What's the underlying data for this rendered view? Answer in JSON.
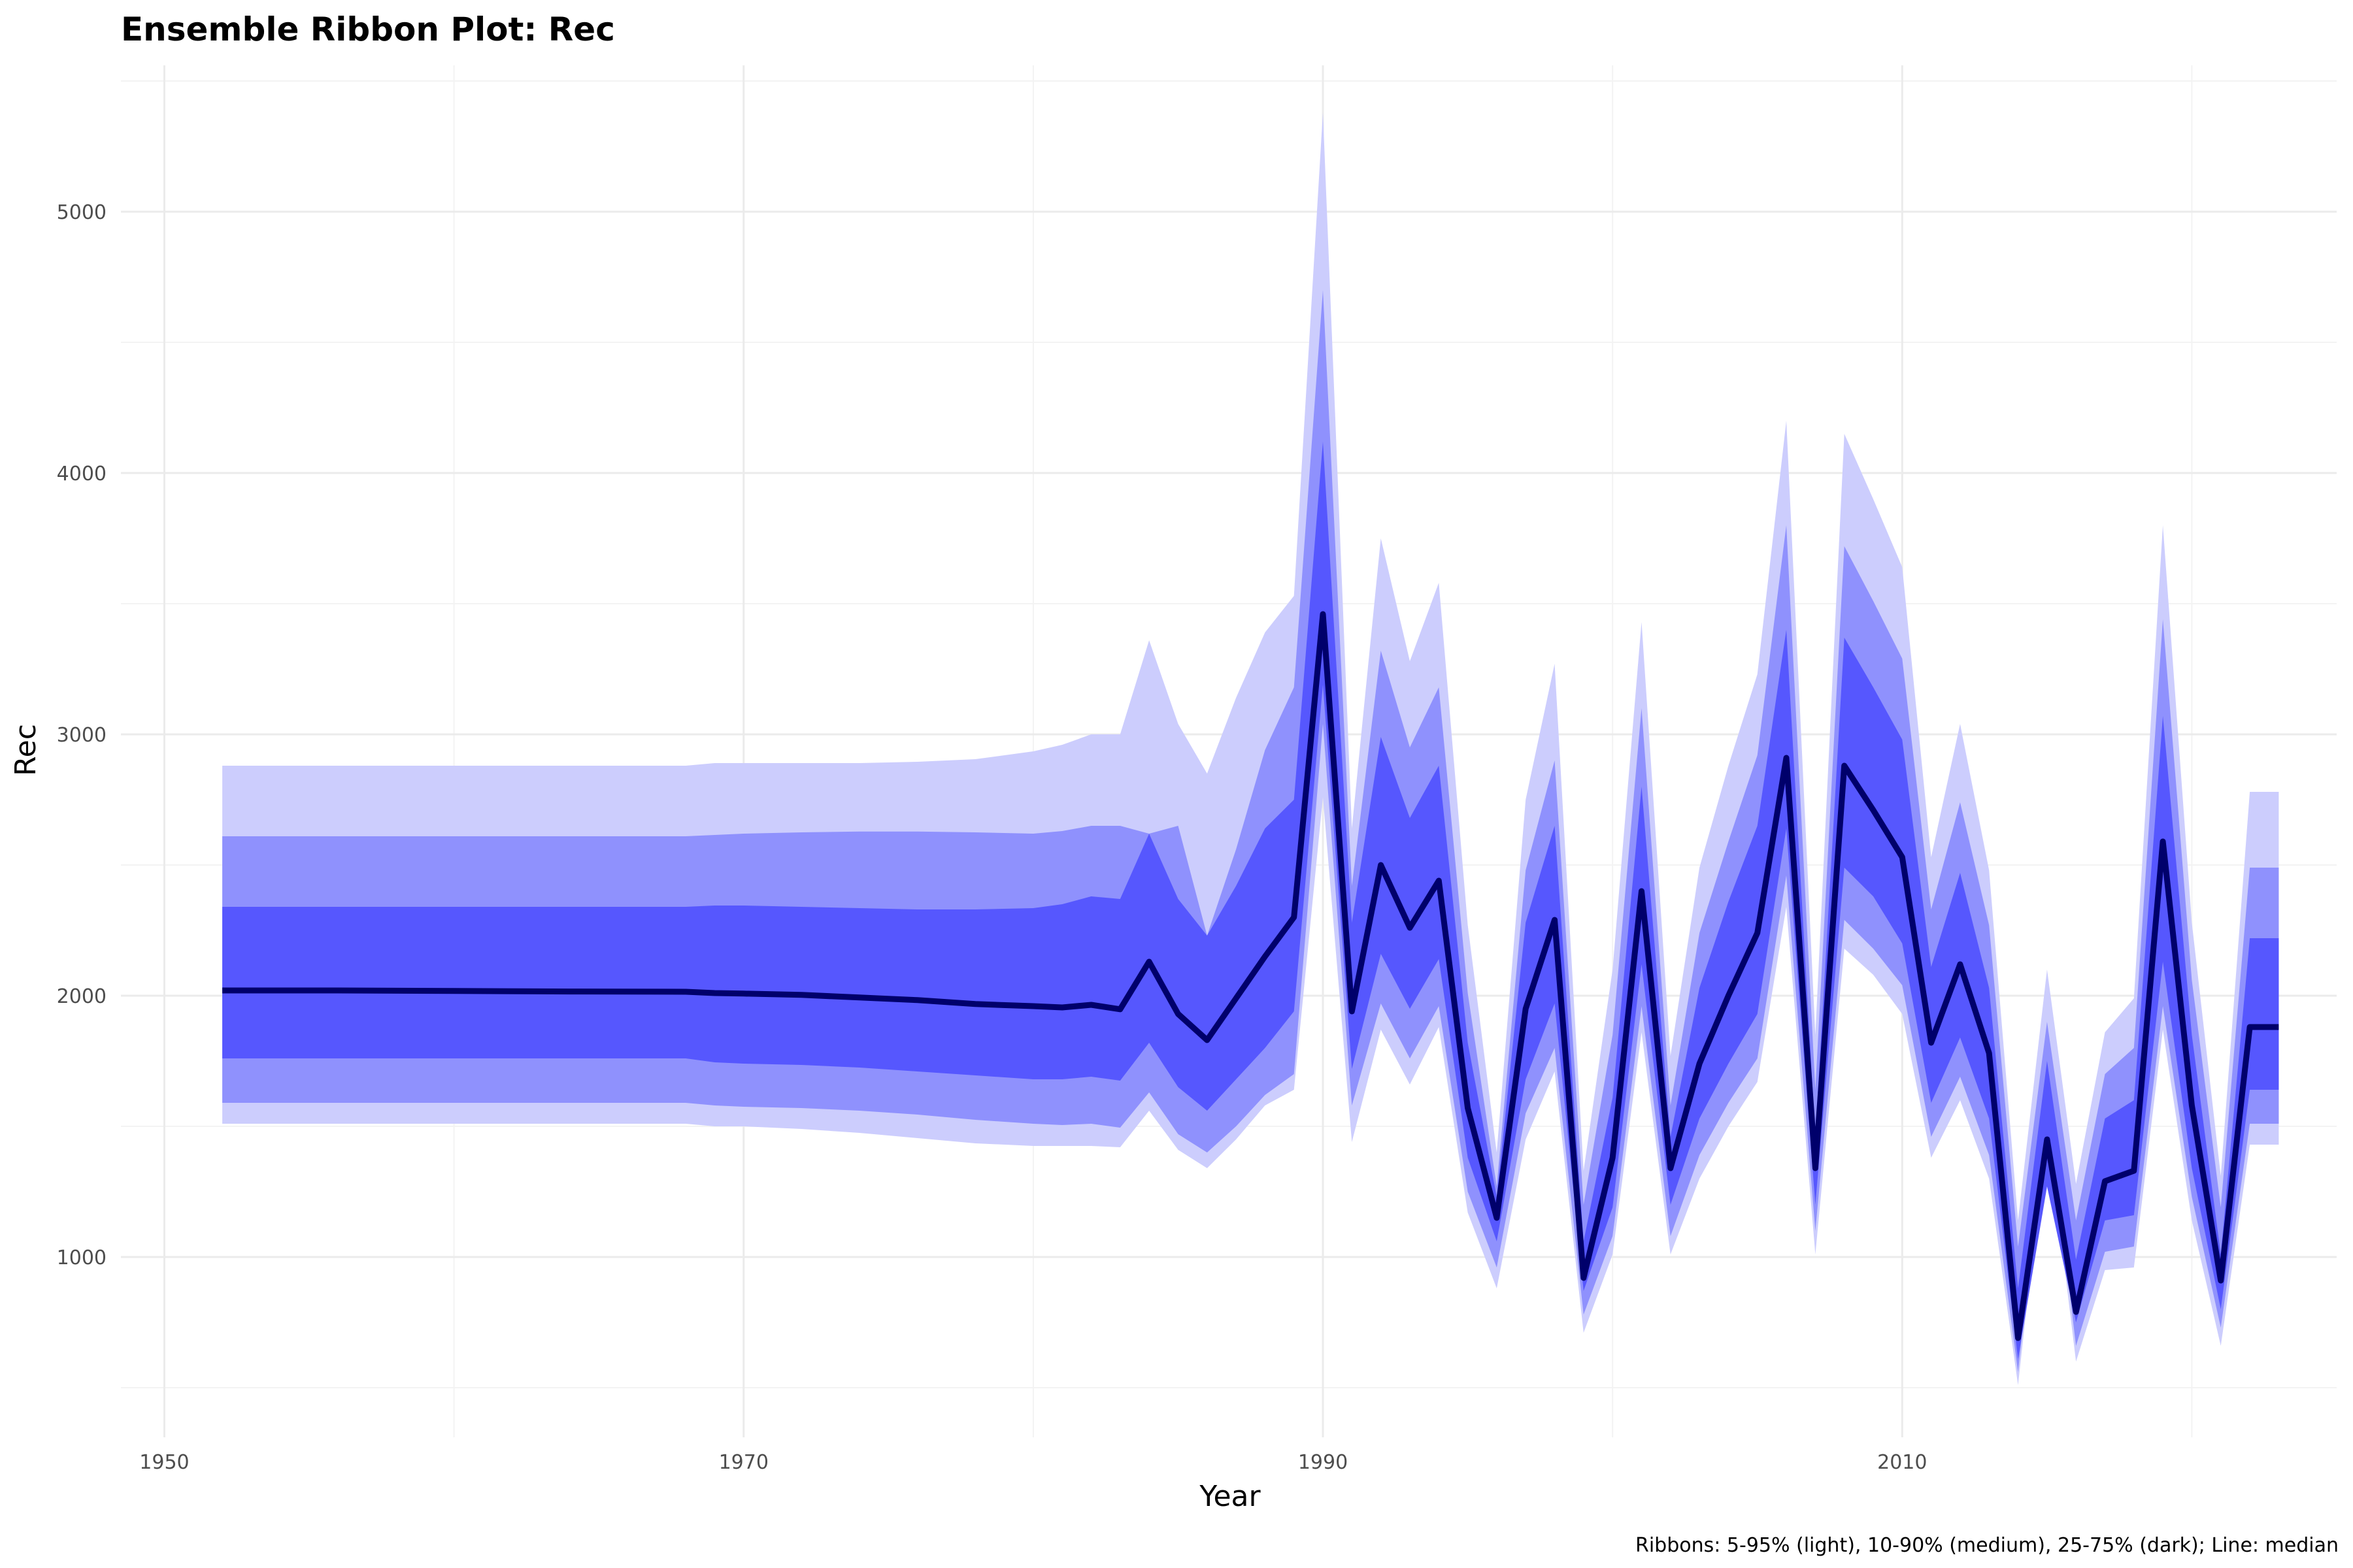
{
  "chart_data": {
    "type": "area",
    "title": "Ensemble Ribbon Plot: Rec",
    "xlabel": "Year",
    "ylabel": "Rec",
    "caption": "Ribbons: 5-95% (light), 10-90% (medium), 25-75% (dark); Line: median",
    "xlim": [
      1948.5,
      2025
    ],
    "ylim": [
      310,
      5560
    ],
    "x_ticks": [
      1950,
      1970,
      1990,
      2010
    ],
    "y_ticks": [
      1000,
      2000,
      3000,
      4000,
      5000
    ],
    "grid": true,
    "colors": {
      "ribbon_5_95": "#cccdfd",
      "ribbon_10_90": "#8f91fd",
      "ribbon_25_75": "#5657fe",
      "median_line": "#00006b"
    },
    "x": [
      1952,
      1956,
      1960,
      1964,
      1968,
      1969,
      1970,
      1972,
      1974,
      1976,
      1978,
      1980,
      1981,
      1982,
      1983,
      1984,
      1985,
      1986,
      1987,
      1988,
      1989,
      1990,
      1991,
      1992,
      1993,
      1994,
      1995,
      1996,
      1997,
      1998,
      1999,
      2000,
      2001,
      2002,
      2003,
      2004,
      2005,
      2006,
      2007,
      2008,
      2009,
      2010,
      2011,
      2012,
      2013,
      2014,
      2015,
      2016,
      2017,
      2018,
      2019,
      2020,
      2021,
      2022,
      2023
    ],
    "series": [
      {
        "name": "5-95% (light)",
        "low": [
          1510,
          1510,
          1510,
          1510,
          1510,
          1500,
          1500,
          1490,
          1475,
          1455,
          1435,
          1425,
          1425,
          1425,
          1420,
          1560,
          1410,
          1340,
          1450,
          1580,
          1640,
          2760,
          1440,
          1870,
          1660,
          1880,
          1170,
          880,
          1450,
          1710,
          710,
          1010,
          1860,
          1010,
          1300,
          1500,
          1670,
          2340,
          1010,
          2180,
          2080,
          1930,
          1380,
          1600,
          1300,
          510,
          1510,
          600,
          950,
          960,
          1870,
          1140,
          660,
          1430,
          1430
        ],
        "high": [
          2880,
          2880,
          2880,
          2880,
          2880,
          2890,
          2890,
          2890,
          2890,
          2895,
          2905,
          2935,
          2960,
          3000,
          3000,
          3360,
          3040,
          2850,
          3140,
          3390,
          3530,
          5380,
          2640,
          3750,
          3280,
          3580,
          2270,
          1400,
          2750,
          3270,
          1330,
          2100,
          3430,
          1770,
          2490,
          2880,
          3230,
          4200,
          1850,
          4150,
          3900,
          3640,
          2530,
          3040,
          2480,
          1140,
          2100,
          1280,
          1860,
          1990,
          3800,
          2280,
          1310,
          2780,
          2780
        ]
      },
      {
        "name": "10-90% (medium)",
        "low": [
          1590,
          1590,
          1590,
          1590,
          1590,
          1580,
          1575,
          1570,
          1560,
          1545,
          1525,
          1510,
          1505,
          1510,
          1495,
          1630,
          1470,
          1400,
          1500,
          1620,
          1700,
          3040,
          1580,
          1970,
          1760,
          1960,
          1250,
          960,
          1550,
          1800,
          780,
          1080,
          1960,
          1080,
          1390,
          1590,
          1760,
          2460,
          1100,
          2290,
          2180,
          2040,
          1460,
          1690,
          1390,
          560,
          1590,
          660,
          1020,
          1040,
          1960,
          1230,
          730,
          1510,
          1510
        ],
        "high": [
          2610,
          2610,
          2610,
          2610,
          2610,
          2615,
          2620,
          2625,
          2628,
          2628,
          2625,
          2620,
          2630,
          2650,
          2650,
          2620,
          2650,
          2230,
          2560,
          2940,
          3180,
          4700,
          2420,
          3320,
          2950,
          3180,
          2010,
          1270,
          2480,
          2900,
          1200,
          1850,
          3100,
          1580,
          2240,
          2590,
          2920,
          3800,
          1640,
          3720,
          3510,
          3290,
          2330,
          2740,
          2270,
          1040,
          1900,
          1140,
          1700,
          1800,
          3440,
          2060,
          1190,
          2490,
          2490
        ]
      },
      {
        "name": "25-75% (dark)",
        "low": [
          1760,
          1760,
          1760,
          1760,
          1760,
          1745,
          1740,
          1735,
          1725,
          1710,
          1695,
          1680,
          1680,
          1690,
          1675,
          1820,
          1650,
          1560,
          1680,
          1800,
          1940,
          3190,
          1720,
          2160,
          1950,
          2140,
          1380,
          1060,
          1680,
          1970,
          870,
          1190,
          2120,
          1200,
          1530,
          1740,
          1930,
          2640,
          1200,
          2490,
          2380,
          2200,
          1590,
          1840,
          1530,
          610,
          1270,
          750,
          1140,
          1160,
          2130,
          1340,
          800,
          1640,
          1640
        ],
        "high": [
          2340,
          2340,
          2340,
          2340,
          2340,
          2345,
          2345,
          2340,
          2335,
          2330,
          2330,
          2335,
          2350,
          2380,
          2370,
          2620,
          2370,
          2230,
          2420,
          2640,
          2750,
          4120,
          2280,
          2990,
          2680,
          2880,
          1820,
          1230,
          2280,
          2650,
          1060,
          1610,
          2800,
          1460,
          2030,
          2360,
          2650,
          3400,
          1460,
          3370,
          3180,
          2980,
          2110,
          2470,
          2030,
          880,
          1750,
          990,
          1530,
          1600,
          3070,
          1850,
          1010,
          2220,
          2220
        ]
      },
      {
        "name": "median",
        "values": [
          2020,
          2020,
          2018,
          2016,
          2015,
          2010,
          2008,
          2003,
          1993,
          1983,
          1968,
          1960,
          1955,
          1965,
          1948,
          2130,
          1930,
          1830,
          1990,
          2150,
          2300,
          3460,
          1940,
          2500,
          2260,
          2440,
          1570,
          1150,
          1950,
          2290,
          920,
          1380,
          2400,
          1340,
          1740,
          2000,
          2240,
          2910,
          1340,
          2880,
          2710,
          2530,
          1820,
          2120,
          1780,
          690,
          1450,
          790,
          1290,
          1330,
          2590,
          1580,
          910,
          1880,
          1880
        ]
      }
    ]
  }
}
